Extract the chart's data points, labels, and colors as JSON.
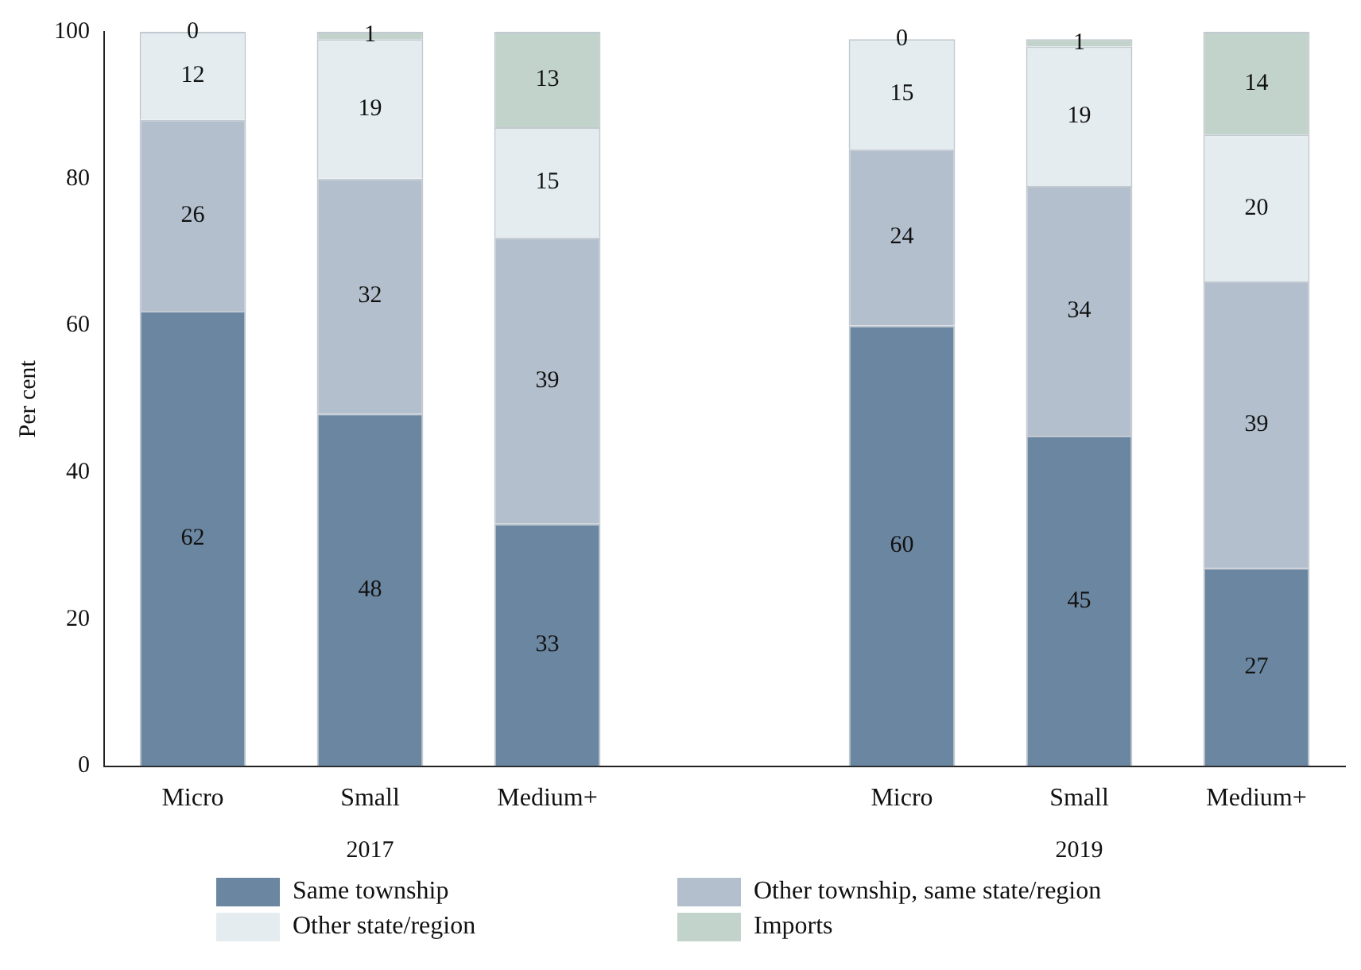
{
  "chart_data": {
    "type": "bar",
    "stacked": true,
    "ylabel": "Per cent",
    "categories": [
      "Micro",
      "Small",
      "Medium+",
      null,
      "Micro",
      "Small",
      "Medium+"
    ],
    "series": [
      {
        "name": "Same township",
        "color": "#6b86a0",
        "values": [
          62,
          48,
          33,
          null,
          60,
          45,
          27
        ]
      },
      {
        "name": "Other township, same state/region",
        "color": "#b3bfcd",
        "values": [
          26,
          32,
          39,
          null,
          24,
          34,
          39
        ]
      },
      {
        "name": "Other state/region",
        "color": "#e4ecf0",
        "values": [
          12,
          19,
          15,
          null,
          15,
          19,
          20
        ]
      },
      {
        "name": "Imports",
        "color": "#c2d3cb",
        "values": [
          0,
          1,
          13,
          null,
          0,
          1,
          14
        ]
      }
    ],
    "ylim": [
      0,
      100
    ],
    "yticks": [
      0,
      20,
      40,
      60,
      80,
      100
    ],
    "grid": false,
    "legend": "bottom",
    "data_labels": true,
    "annotations": [
      "2017",
      "2019"
    ]
  }
}
